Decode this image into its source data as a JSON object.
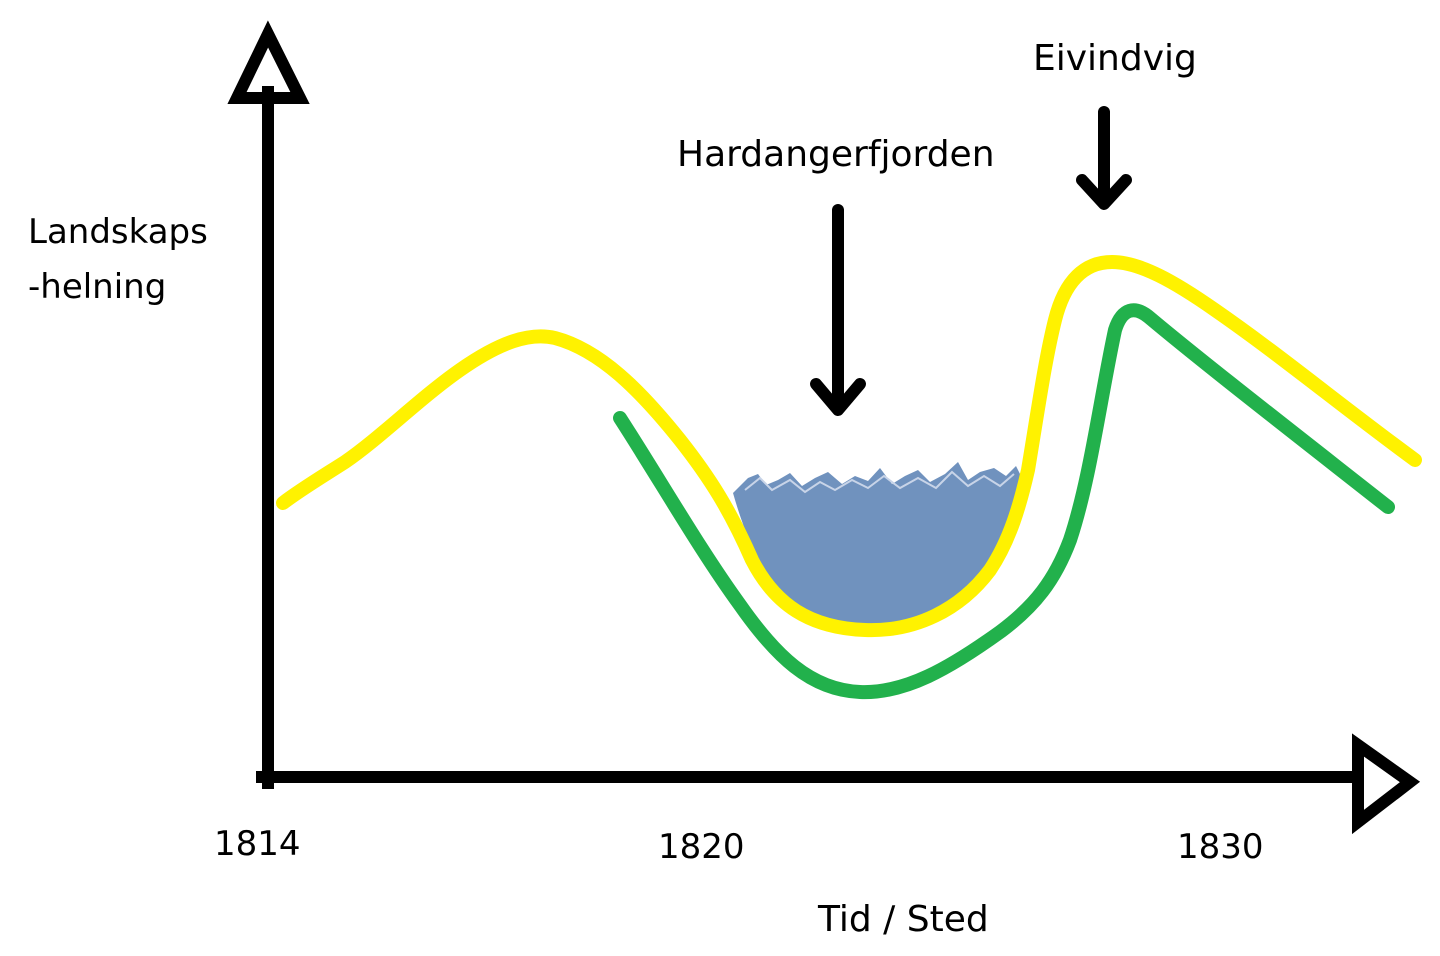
{
  "diagram": {
    "y_label_line1": "Landskaps",
    "y_label_line2": "-helning",
    "x_label": "Tid / Sted",
    "x_ticks": [
      "1814",
      "1820",
      "1830"
    ],
    "annotations": {
      "fjord": "Hardangerfjorden",
      "peak": "Eivindvig"
    },
    "colors": {
      "axes": "#000000",
      "yellow_line": "#fff200",
      "green_line": "#22b14c",
      "water": "#7092be"
    }
  }
}
